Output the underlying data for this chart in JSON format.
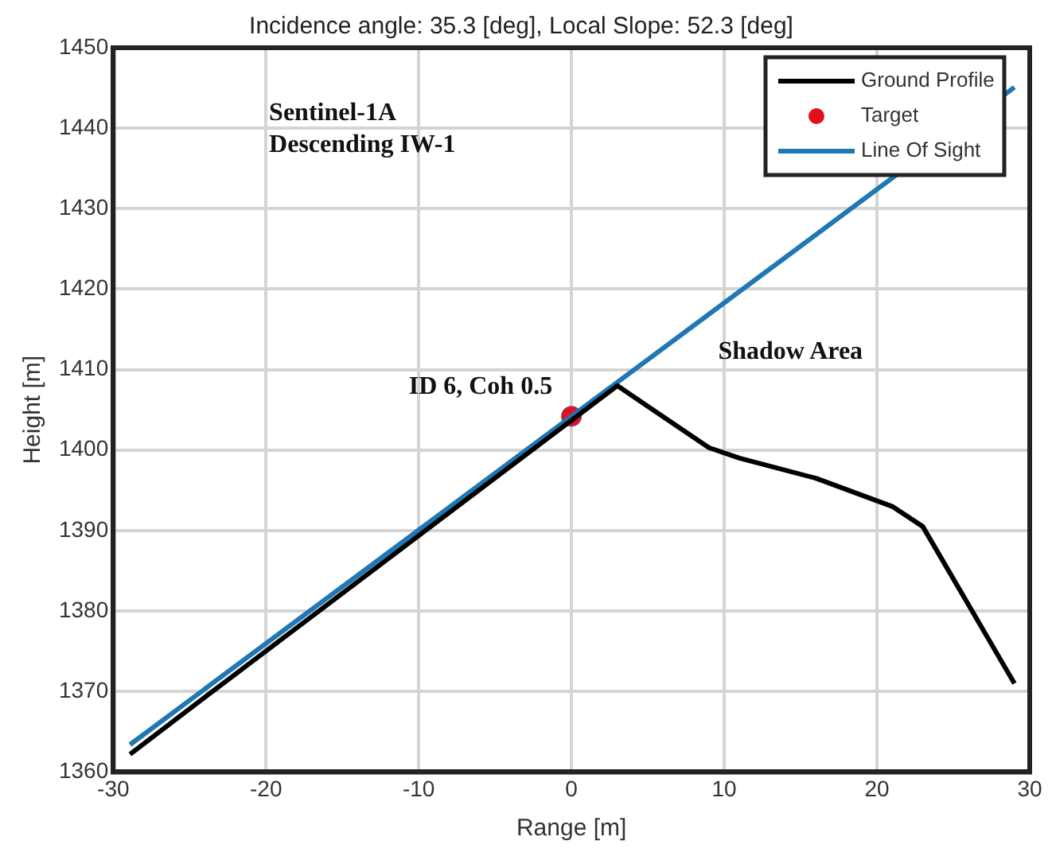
{
  "chart_data": {
    "type": "line",
    "title": "Incidence angle: 35.3 [deg], Local Slope: 52.3 [deg]",
    "xlabel": "Range [m]",
    "ylabel": "Height [m]",
    "xlim": [
      -30,
      30
    ],
    "xticks": [
      -30,
      -20,
      -10,
      0,
      10,
      20,
      30
    ],
    "ylim": [
      1360,
      1450
    ],
    "yticks": [
      1360,
      1370,
      1380,
      1390,
      1400,
      1410,
      1420,
      1430,
      1440,
      1450
    ],
    "grid": true,
    "legend": "top right",
    "line_style": "solid",
    "series": [
      {
        "name": "Ground Profile",
        "color": "#000000",
        "marker": "none",
        "x": [
          -28.9,
          -24,
          3,
          9,
          11,
          16,
          21,
          23,
          29
        ],
        "values": [
          1362.2,
          1369.3,
          1408,
          1400.3,
          1399,
          1396.5,
          1393,
          1390.5,
          1371
        ]
      },
      {
        "name": "Target",
        "type": "scatter",
        "color": "#e3101c",
        "marker": "circle",
        "x": [
          0
        ],
        "values": [
          1404.2
        ]
      },
      {
        "name": "Line Of Sight",
        "color": "#1f77b4",
        "marker": "none",
        "x": [
          -28.9,
          0,
          29
        ],
        "values": [
          1363.4,
          1404.2,
          1445.1
        ]
      }
    ],
    "annotations": [
      "Sentinel-1A\nDescending IW-1",
      {
        "text": "ID 6, Coh 0.5",
        "x": 0,
        "y": 1404.2
      },
      "Shadow Area"
    ]
  }
}
